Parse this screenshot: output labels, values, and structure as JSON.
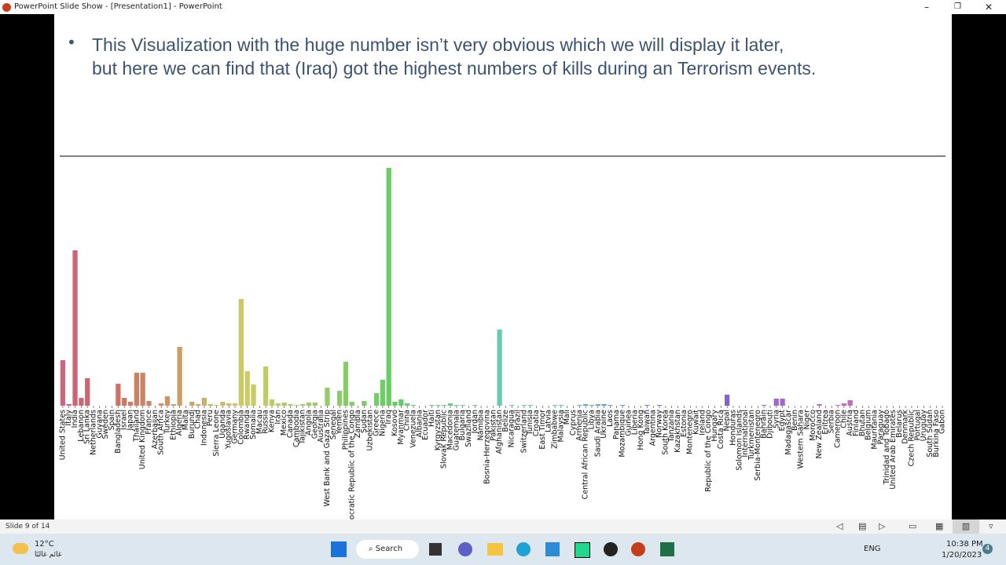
{
  "window": {
    "title": "PowerPoint Slide Show - [Presentation1] - PowerPoint"
  },
  "slide": {
    "bullet": [
      "This Visualization with the huge number isn’t very obvious which we will display it later,",
      "but here we can find that (Iraq) got the highest numbers of kills during an Terrorism events."
    ]
  },
  "chart_data": {
    "type": "bar",
    "palette": "husl",
    "categories": [
      "United States",
      "Italy",
      "India",
      "Lebanon",
      "Sri Lanka",
      "Netherlands",
      "Guyana",
      "Sweden",
      "Spain",
      "Bangladesh",
      "Israel",
      "Japan",
      "Thailand",
      "United Kingdom",
      "France",
      "Azerbaijan",
      "South Africa",
      "Turkey",
      "Ethiopia",
      "Algeria",
      "Malta",
      "Burundi",
      "Chad",
      "Indonesia",
      "Peru",
      "Sierra Leone",
      "Uganda",
      "Yugoslavia",
      "Germany",
      "Colombia",
      "Rwanda",
      "Somalia",
      "Macau",
      "Russia",
      "Kenya",
      "Iran",
      "Mexico",
      "Canada",
      "Cambodia",
      "Tajikistan",
      "Angola",
      "Georgia",
      "Australia",
      "West Bank and Gaza Strip",
      "Senegal",
      "Yemen",
      "Philippines",
      "Democratic Republic of the Congo",
      "Zambia",
      "Sudan",
      "Uzbekistan",
      "Greece",
      "Nigeria",
      "Iraq",
      "Kosovo",
      "Myanmar",
      "China",
      "Venezuela",
      "Albania",
      "Ecuador",
      "Haiti",
      "Kyrgyzstan",
      "Slovak Republic",
      "Macedonia",
      "Guatemala",
      "Bulgaria",
      "Swaziland",
      "Jordan",
      "Namibia",
      "Bosnia-Herzegovina",
      "Pakistan",
      "Afghanistan",
      "Belize",
      "Nicaragua",
      "Brazil",
      "Switzerland",
      "Tunisia",
      "Croatia",
      "East Timor",
      "Latvia",
      "Zimbabwe",
      "Malaysia",
      "Mali",
      "Cyprus",
      "Armenia",
      "Central African Republic",
      "Libya",
      "Saudi Arabia",
      "Ukraine",
      "Laos",
      "Panama",
      "Mozambique",
      "Guinea",
      "Liberia",
      "Hong Kong",
      "Taiwan",
      "Argentina",
      "Norway",
      "South Korea",
      "Tanzania",
      "Kazakhstan",
      "Estonia",
      "Montenegro",
      "Kuwait",
      "Ireland",
      "Republic of the Congo",
      "Hungary",
      "Costa Rica",
      "Nepal",
      "Honduras",
      "Solomon Islands",
      "International",
      "Turkmenistan",
      "Serbia-Montenegro",
      "Bahrain",
      "Djibouti",
      "Syria",
      "Egypt",
      "Madagascar",
      "Benin",
      "Western Sahara",
      "Niger",
      "Morocco",
      "New Zealand",
      "Eritrea",
      "Serbia",
      "Cameroon",
      "Chile",
      "Austria",
      "Finland",
      "Bhutan",
      "Belgium",
      "Mauritania",
      "Paraguay",
      "Trinidad and Tobago",
      "United Arab Emirates",
      "Belarus",
      "Denmark",
      "Czech Republic",
      "Portugal",
      "Uruguay",
      "South Sudan",
      "Burkina Faso",
      "Gabon"
    ],
    "values": [
      58,
      2,
      198,
      10,
      35,
      0,
      0,
      0,
      0,
      28,
      10,
      5,
      42,
      42,
      6,
      0,
      3,
      12,
      2,
      75,
      0,
      5,
      2,
      10,
      2,
      1,
      5,
      3,
      3,
      136,
      44,
      27,
      0,
      50,
      8,
      3,
      4,
      2,
      1,
      2,
      4,
      4,
      0,
      23,
      0,
      19,
      56,
      5,
      0,
      6,
      0,
      16,
      33,
      303,
      5,
      8,
      3,
      1,
      0,
      0,
      1,
      1,
      1,
      3,
      1,
      1,
      0,
      1,
      0,
      0,
      0,
      97,
      0,
      1,
      0,
      1,
      1,
      0,
      0,
      0,
      1,
      1,
      0,
      0,
      1,
      2,
      1,
      2,
      2,
      1,
      0,
      1,
      0,
      0,
      0,
      1,
      0,
      1,
      0,
      0,
      0,
      0,
      0,
      0,
      0,
      0,
      0,
      0,
      14,
      0,
      0,
      0,
      0,
      0,
      1,
      0,
      9,
      9,
      0,
      0,
      0,
      0,
      0,
      2,
      0,
      0,
      1,
      3,
      7,
      0,
      0,
      0,
      0,
      0,
      0,
      0,
      0,
      0,
      0,
      0,
      0,
      0,
      0,
      0
    ]
  },
  "status": {
    "slide": "Slide 9 of 14"
  },
  "taskbar": {
    "temp": "12°C",
    "weather": "غائم غالبًا",
    "search": "Search",
    "lang": "ENG",
    "time": "10:38 PM",
    "date": "1/20/2023",
    "badge": "4"
  }
}
